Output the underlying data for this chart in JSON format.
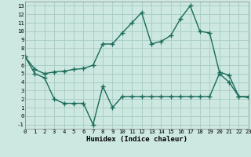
{
  "bg_color": "#cce8e0",
  "grid_color": "#aacfc8",
  "line_color": "#1a6b5a",
  "line1_x": [
    0,
    1,
    2,
    3,
    4,
    5,
    6,
    7,
    8,
    9,
    10,
    11,
    12,
    13,
    14,
    15,
    16,
    17,
    18,
    19,
    20,
    21,
    22,
    23
  ],
  "line1_y": [
    7.0,
    5.5,
    5.0,
    5.2,
    5.3,
    5.5,
    5.6,
    6.0,
    8.5,
    8.5,
    9.8,
    11.0,
    12.2,
    8.5,
    8.8,
    9.5,
    11.5,
    13.0,
    10.0,
    9.8,
    5.2,
    4.8,
    2.3,
    2.2
  ],
  "line2_x": [
    0,
    1,
    2,
    3,
    4,
    5,
    6,
    7,
    8,
    9,
    10,
    11,
    12,
    13,
    14,
    15,
    16,
    17,
    18,
    19,
    20,
    21,
    22,
    23
  ],
  "line2_y": [
    7.0,
    5.0,
    4.5,
    2.0,
    1.5,
    1.5,
    1.5,
    -1.0,
    3.5,
    1.0,
    2.3,
    2.3,
    2.3,
    2.3,
    2.3,
    2.3,
    2.3,
    2.3,
    2.3,
    2.3,
    5.0,
    4.0,
    2.3,
    2.3
  ],
  "xlabel": "Humidex (Indice chaleur)",
  "xlim": [
    0,
    23
  ],
  "ylim": [
    -1.5,
    13.5
  ],
  "yticks": [
    -1,
    0,
    1,
    2,
    3,
    4,
    5,
    6,
    7,
    8,
    9,
    10,
    11,
    12,
    13
  ],
  "xticks": [
    0,
    1,
    2,
    3,
    4,
    5,
    6,
    7,
    8,
    9,
    10,
    11,
    12,
    13,
    14,
    15,
    16,
    17,
    18,
    19,
    20,
    21,
    22,
    23
  ],
  "marker": "+",
  "markersize": 4,
  "linewidth": 1.0,
  "xlabel_fontsize": 6.5,
  "tick_fontsize": 5.2
}
